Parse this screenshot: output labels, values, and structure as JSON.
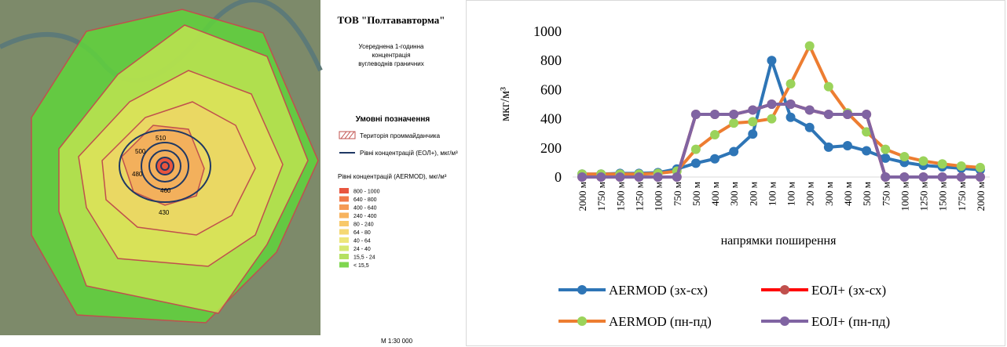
{
  "map": {
    "title": "ТОВ \"Полтававторма\"",
    "subtitle": [
      "Усереднена 1-годинна",
      "концентрація",
      "вуглеводнів граничних"
    ],
    "legend_title": "Умовні позначення",
    "site_label": "Територія проммайданчика",
    "eol_label": "Рівні концентрацій (ЕОЛ+), мкг/м³",
    "aermod_label": "Рівні концентрацій (AERMOD), мкг/м³",
    "bins": [
      {
        "label": "800 - 1000",
        "color": "#e8553f"
      },
      {
        "label": "640 - 800",
        "color": "#f07a4a"
      },
      {
        "label": "400 - 640",
        "color": "#f59a55"
      },
      {
        "label": "240 - 400",
        "color": "#f7b35f"
      },
      {
        "label": "80 - 240",
        "color": "#f8c96a"
      },
      {
        "label": "64 - 80",
        "color": "#f5d873"
      },
      {
        "label": "40 - 64",
        "color": "#eee67a"
      },
      {
        "label": "24 - 40",
        "color": "#d7e872"
      },
      {
        "label": "15,5 - 24",
        "color": "#b4e060"
      },
      {
        "label": "< 15,5",
        "color": "#7fd650"
      }
    ],
    "contour_labels": [
      "510",
      "500",
      "480",
      "460",
      "430"
    ],
    "scale": "М 1:30 000"
  },
  "chart_data": {
    "type": "line",
    "y_label": "мкг/м³",
    "x_label": "напрямки поширення",
    "categories": [
      "2000 м",
      "1750 м",
      "1500 м",
      "1250 м",
      "1000 м",
      "750 м",
      "500 м",
      "400 м",
      "300 м",
      "200 м",
      "100 м",
      "100 м",
      "200 м",
      "300 м",
      "400 м",
      "500 м",
      "750 м",
      "1000 м",
      "1250 м",
      "1500 м",
      "1750 м",
      "2000 м"
    ],
    "ylim": [
      0,
      1000
    ],
    "yticks": [
      0,
      200,
      400,
      600,
      800,
      1000
    ],
    "series": [
      {
        "name": "AERMOD (зх-сх)",
        "color": "#2e75b6",
        "marker_color": "#2e75b6",
        "values": [
          20,
          20,
          25,
          25,
          30,
          55,
          95,
          125,
          175,
          295,
          800,
          410,
          340,
          205,
          215,
          180,
          130,
          100,
          80,
          70,
          60,
          50
        ]
      },
      {
        "name": "ЕОЛ+ (зх-сх)",
        "color": "#ff0000",
        "marker_color": "#c0504d",
        "values": [
          0,
          0,
          0,
          0,
          0,
          0,
          430,
          430,
          430,
          460,
          500,
          500,
          460,
          430,
          430,
          430,
          0,
          0,
          0,
          0,
          0,
          0
        ]
      },
      {
        "name": "AERMOD (пн-пд)",
        "color": "#ed7d31",
        "marker_color": "#9bd35a",
        "values": [
          20,
          20,
          20,
          20,
          25,
          40,
          190,
          290,
          370,
          380,
          400,
          640,
          900,
          620,
          440,
          310,
          190,
          140,
          110,
          90,
          75,
          65
        ]
      },
      {
        "name": "ЕОЛ+ (пн-пд)",
        "color": "#8064a2",
        "marker_color": "#8064a2",
        "values": [
          0,
          0,
          0,
          0,
          0,
          0,
          430,
          430,
          430,
          460,
          500,
          500,
          460,
          430,
          430,
          430,
          0,
          0,
          0,
          0,
          0,
          0
        ]
      }
    ]
  }
}
